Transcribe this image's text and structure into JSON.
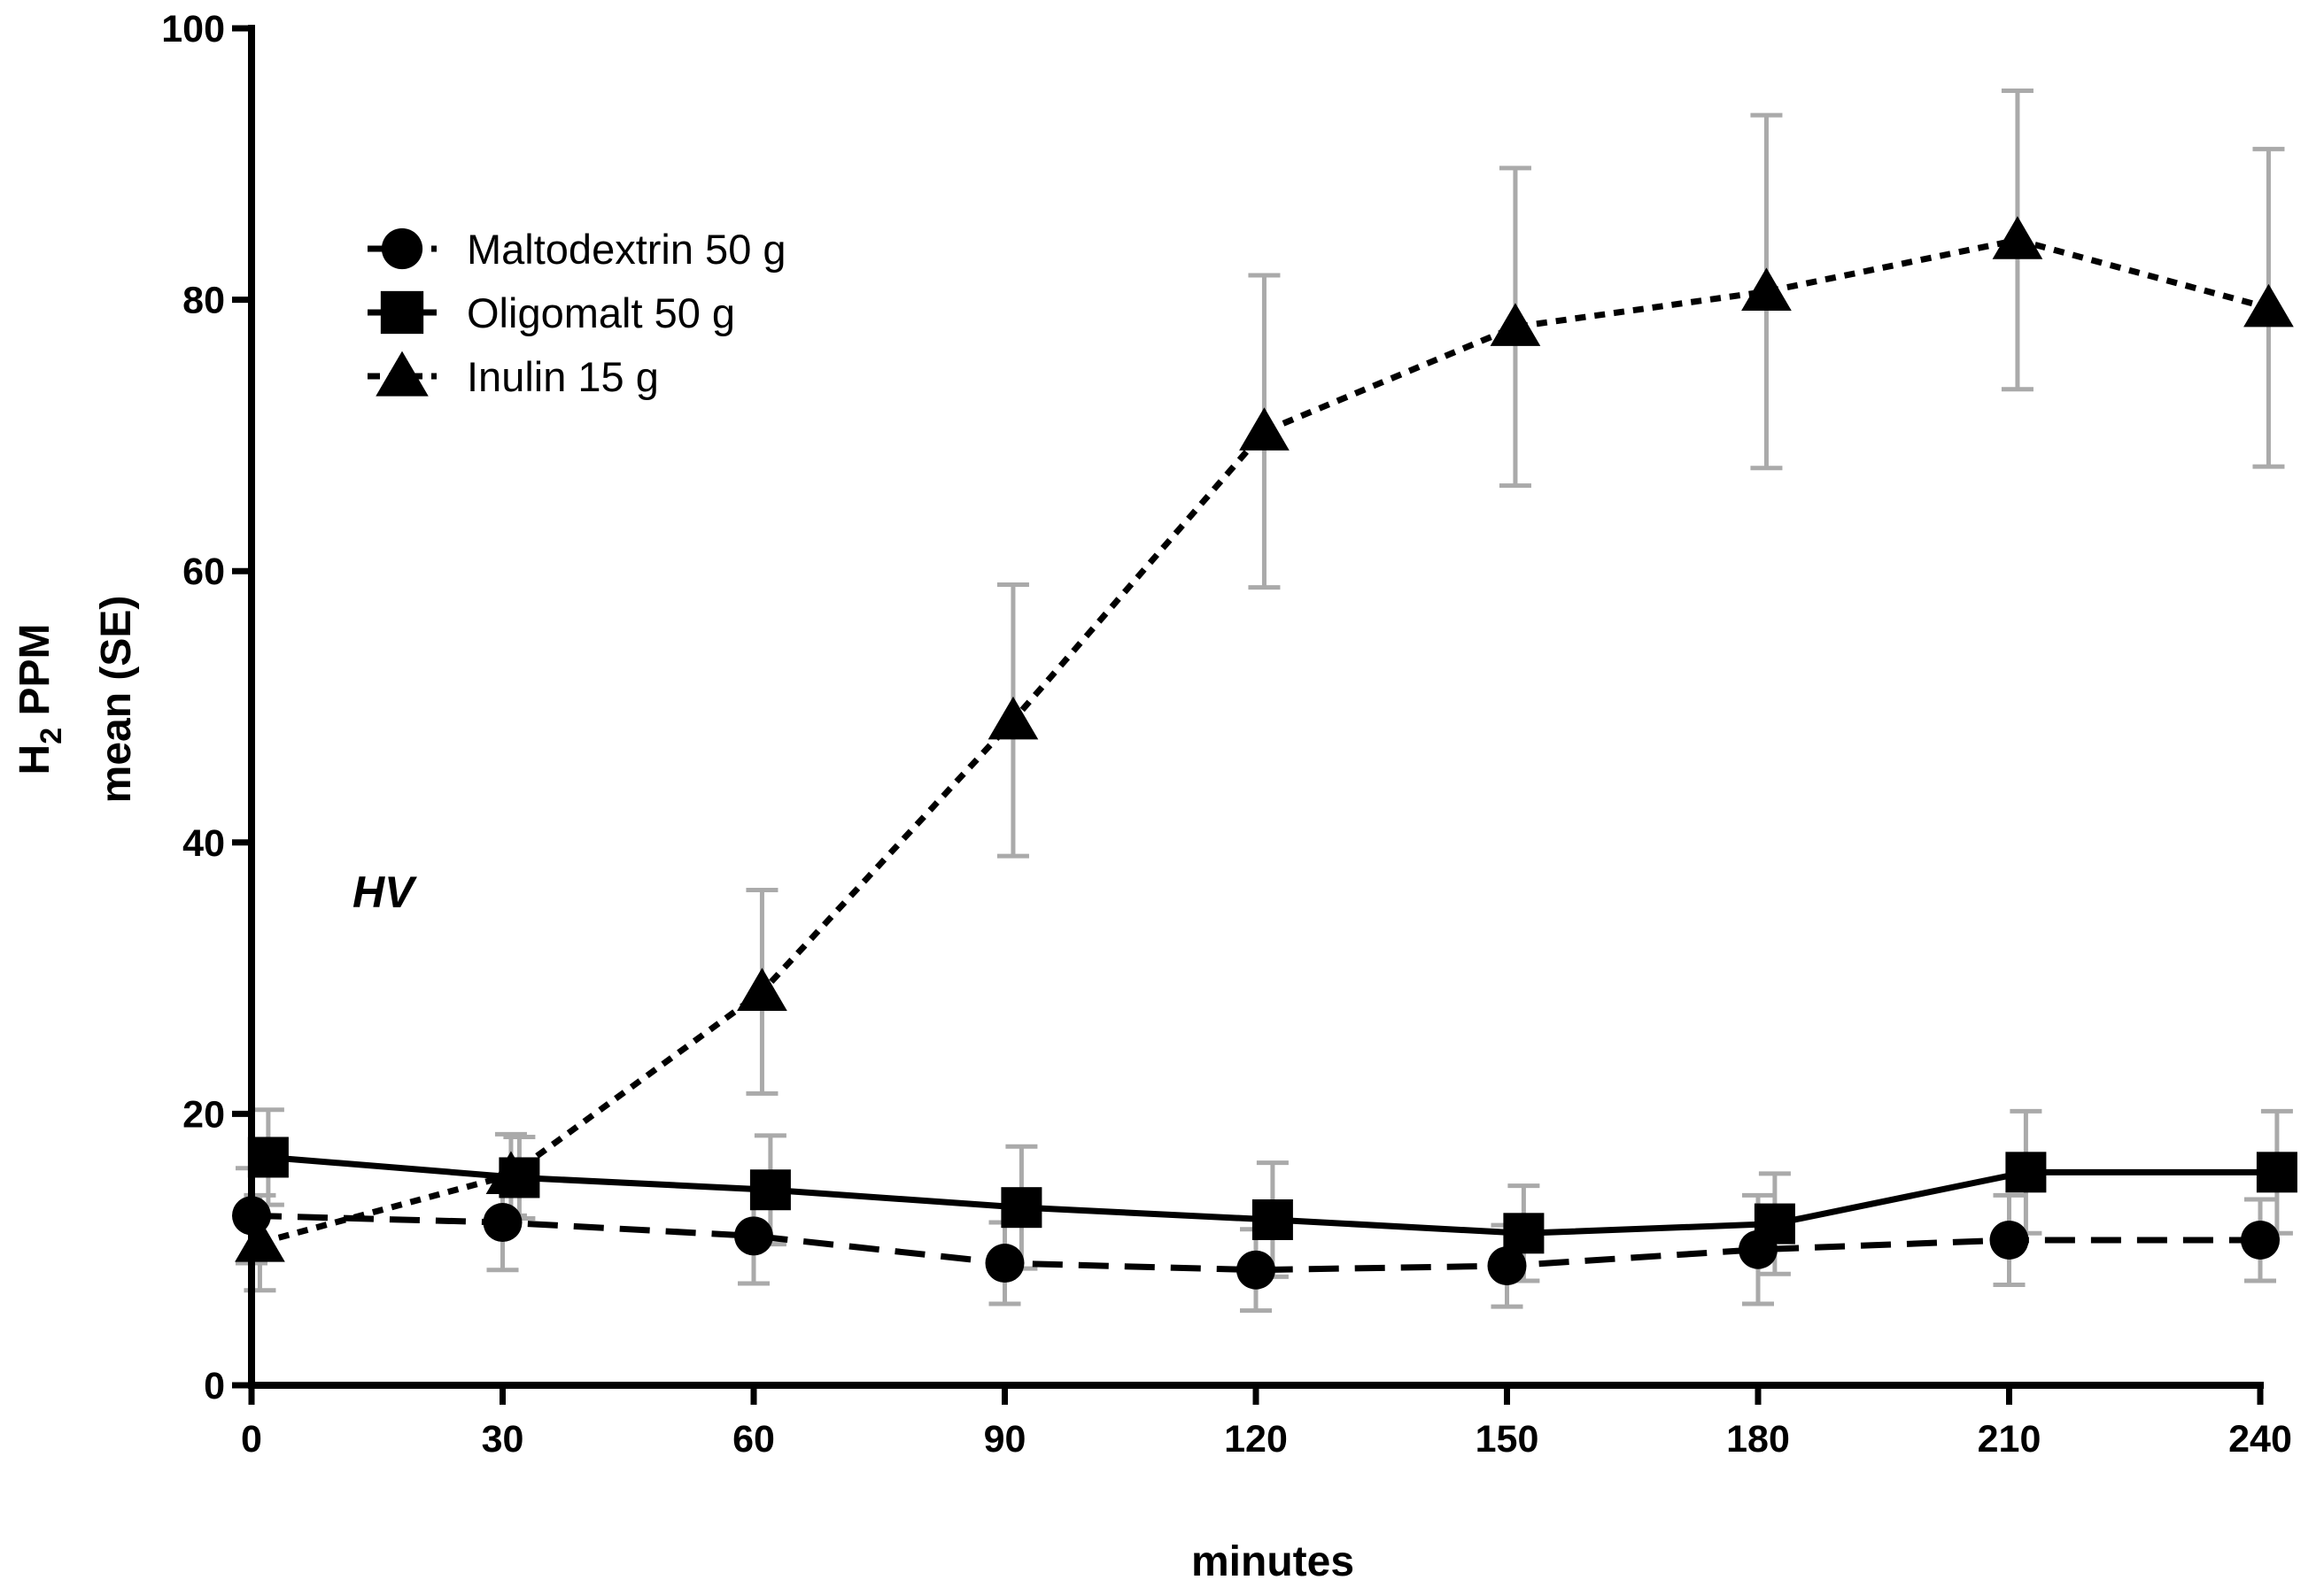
{
  "colors": {
    "series": "#000000",
    "error_bars": "#aaaaaa",
    "axes": "#000000"
  },
  "chart_data": {
    "type": "line",
    "title": "",
    "xlabel": "minutes",
    "ylabel_line1": "H",
    "ylabel_subscript": "2",
    "ylabel_line1_rest": " PPM",
    "ylabel_line2": "mean (SE)",
    "annotation": "HV",
    "xlim": [
      0,
      240
    ],
    "ylim": [
      0,
      100
    ],
    "x_ticks": [
      "0",
      "30",
      "60",
      "90",
      "120",
      "150",
      "180",
      "210",
      "240"
    ],
    "y_ticks": [
      "0",
      "20",
      "40",
      "60",
      "80",
      "100"
    ],
    "grid": false,
    "legend_position": "top-left",
    "series": [
      {
        "name": "Maltodextrin 50 g",
        "marker": "circle",
        "line": "dashed",
        "x": [
          0,
          30,
          60,
          90,
          120,
          150,
          180,
          210,
          240
        ],
        "y": [
          12.5,
          12.0,
          11.0,
          9.0,
          8.5,
          8.8,
          10.0,
          10.7,
          10.7
        ],
        "err": [
          3.5,
          3.5,
          3.5,
          3.0,
          3.0,
          3.0,
          4.0,
          3.3,
          3.0
        ]
      },
      {
        "name": "Oligomalt 50 g",
        "marker": "square",
        "line": "solid",
        "x": [
          2,
          32,
          62,
          92,
          122,
          152,
          182,
          212,
          242
        ],
        "y": [
          16.8,
          15.3,
          14.4,
          13.1,
          12.2,
          11.2,
          11.9,
          15.7,
          15.7
        ],
        "err": [
          3.5,
          3.0,
          4.0,
          4.5,
          4.2,
          3.5,
          3.7,
          4.5,
          4.5
        ]
      },
      {
        "name": "Inulin 15 g",
        "marker": "triangle",
        "line": "dotted",
        "x": [
          1,
          31,
          61,
          91,
          121,
          151,
          181,
          211,
          241
        ],
        "y": [
          10.5,
          15.5,
          29.0,
          49.0,
          70.3,
          78.0,
          80.6,
          84.4,
          79.4
        ],
        "err": [
          3.5,
          3.0,
          7.5,
          10.0,
          11.5,
          11.7,
          13.0,
          11.0,
          11.7
        ]
      }
    ]
  }
}
